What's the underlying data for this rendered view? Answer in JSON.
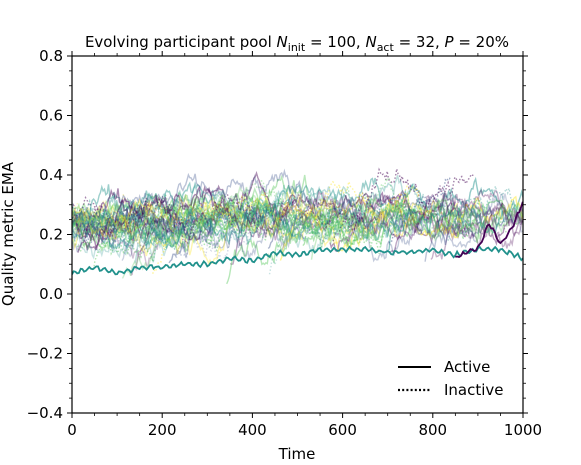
{
  "chart_data": {
    "type": "line",
    "title": {
      "pre": "Evolving participant pool ",
      "n1": "N",
      "n1sub": "init",
      "n1val": " = 100, ",
      "n2": "N",
      "n2sub": "act",
      "n2val": " = 32, ",
      "p": "P",
      "pval": " = 20%"
    },
    "xlabel": "Time",
    "ylabel": "Quality metric EMA",
    "xlim": [
      0,
      1000
    ],
    "ylim": [
      -0.4,
      0.8
    ],
    "xticks": [
      0,
      200,
      400,
      600,
      800,
      1000
    ],
    "xtick_labels": [
      "0",
      "200",
      "400",
      "600",
      "800",
      "1000"
    ],
    "yticks": [
      -0.4,
      -0.2,
      0.0,
      0.2,
      0.4,
      0.6,
      0.8
    ],
    "ytick_labels": [
      "−0.4",
      "−0.2",
      "0.0",
      "0.2",
      "0.4",
      "0.6",
      "0.8"
    ],
    "legend": {
      "placement": "lower-right",
      "entries": [
        {
          "label": "Active",
          "style": "solid"
        },
        {
          "label": "Inactive",
          "style": "dotted"
        }
      ]
    },
    "colormap": "viridis",
    "palette": [
      "#440154",
      "#3b528b",
      "#21918c",
      "#5ec962",
      "#fde725"
    ],
    "band": {
      "x": [
        0,
        100,
        200,
        300,
        400,
        500,
        600,
        700,
        800,
        900,
        1000
      ],
      "mean": [
        0.24,
        0.24,
        0.25,
        0.26,
        0.27,
        0.28,
        0.28,
        0.29,
        0.28,
        0.29,
        0.28
      ],
      "spread": [
        0.1,
        0.11,
        0.11,
        0.12,
        0.11,
        0.11,
        0.12,
        0.11,
        0.11,
        0.11,
        0.1
      ]
    },
    "series": [
      {
        "style": "solid",
        "color": "#21918c",
        "x": [
          0,
          50,
          100,
          150,
          200,
          250,
          300,
          350,
          400,
          450,
          500,
          550,
          600,
          650,
          700,
          750,
          800,
          850,
          900,
          950,
          1000
        ],
        "y": [
          0.07,
          0.09,
          0.07,
          0.09,
          0.09,
          0.1,
          0.1,
          0.12,
          0.11,
          0.14,
          0.13,
          0.15,
          0.15,
          0.15,
          0.14,
          0.14,
          0.15,
          0.13,
          0.15,
          0.15,
          0.12
        ]
      },
      {
        "style": "solid",
        "color": "#440154",
        "x": [
          850,
          875,
          900,
          925,
          950,
          975,
          1000
        ],
        "y": [
          0.12,
          0.14,
          0.15,
          0.24,
          0.17,
          0.22,
          0.31
        ]
      }
    ]
  }
}
